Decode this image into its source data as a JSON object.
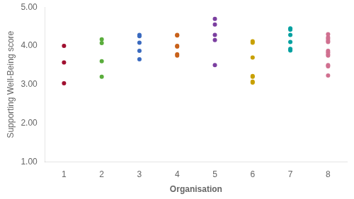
{
  "chart_data": {
    "type": "scatter",
    "xlabel": "Organisation",
    "ylabel": "Supporting Well-Being score",
    "xlim": [
      0.5,
      8.5
    ],
    "xticks": [
      1,
      2,
      3,
      4,
      5,
      6,
      7,
      8
    ],
    "ylim": [
      1.0,
      5.0
    ],
    "yticks": [
      {
        "value": 1.0,
        "label": "1.00"
      },
      {
        "value": 2.0,
        "label": "2.00"
      },
      {
        "value": 3.0,
        "label": "3.00"
      },
      {
        "value": 4.0,
        "label": "4.00"
      },
      {
        "value": 5.0,
        "label": "5.00"
      }
    ],
    "grid": false,
    "series": [
      {
        "color": "#a01030",
        "x": [
          1,
          1,
          1
        ],
        "values": [
          3.03,
          3.57,
          4.0
        ]
      },
      {
        "color": "#5aad3c",
        "x": [
          2,
          2,
          2,
          2
        ],
        "values": [
          3.2,
          3.6,
          4.07,
          4.17
        ]
      },
      {
        "color": "#3a6abf",
        "x": [
          3,
          3,
          3,
          3,
          3
        ],
        "values": [
          3.65,
          3.87,
          4.08,
          4.25,
          4.28
        ]
      },
      {
        "color": "#c8611a",
        "x": [
          4,
          4,
          4,
          4,
          4,
          4
        ],
        "values": [
          3.75,
          3.78,
          3.98,
          4.0,
          4.27,
          4.28
        ]
      },
      {
        "color": "#7b3fa0",
        "x": [
          5,
          5,
          5,
          5,
          5
        ],
        "values": [
          3.5,
          4.15,
          4.28,
          4.55,
          4.7
        ]
      },
      {
        "color": "#c8a000",
        "x": [
          6,
          6,
          6,
          6,
          6,
          6,
          6
        ],
        "values": [
          3.05,
          3.07,
          3.2,
          3.22,
          3.7,
          4.08,
          4.12
        ]
      },
      {
        "color": "#00a0a0",
        "x": [
          7,
          7,
          7,
          7,
          7,
          7
        ],
        "values": [
          3.88,
          3.92,
          4.1,
          4.28,
          4.42,
          4.45
        ]
      },
      {
        "color": "#d07090",
        "x": [
          8,
          8,
          8,
          8,
          8,
          8,
          8,
          8,
          8,
          8,
          8,
          8
        ],
        "values": [
          3.23,
          3.47,
          3.5,
          3.75,
          3.78,
          3.83,
          3.87,
          4.1,
          4.13,
          4.18,
          4.22,
          4.3
        ]
      }
    ]
  }
}
